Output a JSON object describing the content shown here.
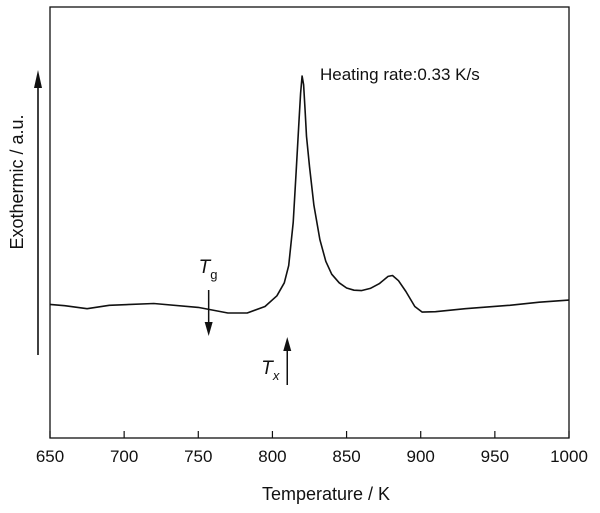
{
  "chart_data": {
    "type": "line",
    "xlabel": "Temperature / K",
    "ylabel": "Exothermic / a.u.",
    "xlim": [
      650,
      1000
    ],
    "ylim": [
      0,
      100
    ],
    "x_ticks": [
      "650",
      "700",
      "750",
      "800",
      "850",
      "900",
      "950",
      "1000"
    ],
    "y_ticks": [],
    "grid": false,
    "annotation": "Heating rate:0.33 K/s",
    "markers": [
      {
        "label_main": "T",
        "label_sub": "g",
        "x": 757,
        "direction": "down"
      },
      {
        "label_main": "T",
        "label_sub": "x",
        "x": 810,
        "direction": "up"
      }
    ],
    "series": [
      {
        "x": [
          650,
          660,
          675,
          690,
          720,
          750,
          770,
          783,
          795,
          803,
          808,
          811,
          814,
          816,
          818,
          819,
          820,
          821,
          822,
          823,
          825,
          828,
          832,
          836,
          840,
          845,
          850,
          855,
          860,
          866,
          872,
          878,
          881,
          885,
          890,
          896,
          901,
          910,
          930,
          960,
          980,
          1000
        ],
        "y": [
          31,
          30.7,
          30,
          30.8,
          31.2,
          30.3,
          29,
          29,
          30.5,
          33,
          36,
          40,
          50,
          62,
          74,
          80,
          84,
          82,
          76,
          70,
          63,
          54,
          46,
          41,
          38,
          36,
          34.8,
          34.3,
          34.2,
          34.7,
          35.8,
          37.5,
          37.7,
          36.5,
          34,
          30.5,
          29.2,
          29.3,
          30,
          30.8,
          31.5,
          32
        ]
      }
    ]
  }
}
